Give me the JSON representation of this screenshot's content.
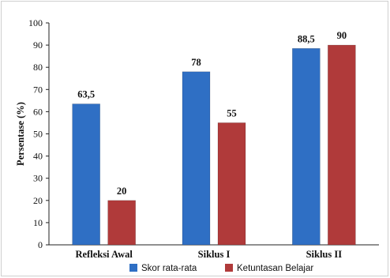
{
  "chart_data": {
    "type": "bar",
    "title": "",
    "xlabel": "",
    "ylabel": "Persentase (%)",
    "ylim": [
      0,
      100
    ],
    "yticks": [
      0,
      10,
      20,
      30,
      40,
      50,
      60,
      70,
      80,
      90,
      100
    ],
    "ytick_labels": [
      "0",
      "10",
      "20",
      "30",
      "40",
      "50",
      "60",
      "70",
      "80",
      "90",
      "100"
    ],
    "categories": [
      "Refleksi Awal",
      "Siklus I",
      "Siklus II"
    ],
    "series": [
      {
        "name": "Skor rata-rata",
        "values": [
          63.5,
          78,
          88.5
        ],
        "labels": [
          "63,5",
          "78",
          "88,5"
        ],
        "color": "#2f6fc4"
      },
      {
        "name": "Ketuntasan Belajar",
        "values": [
          20,
          55,
          90
        ],
        "labels": [
          "20",
          "55",
          "90"
        ],
        "color": "#b03a3a"
      }
    ],
    "grid": false,
    "legend": "bottom"
  }
}
